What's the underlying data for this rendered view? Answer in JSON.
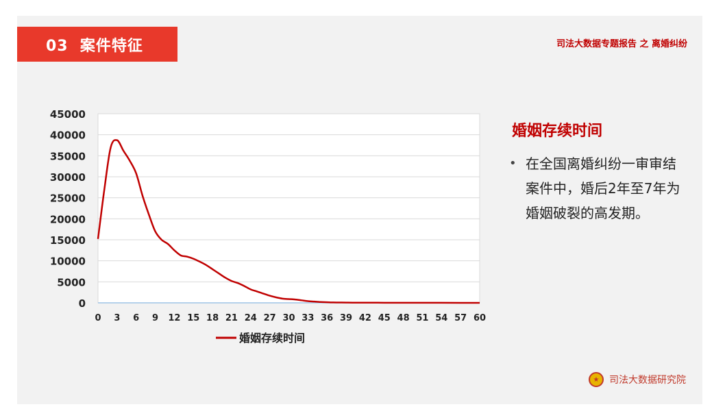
{
  "header": {
    "section_tab": "03  案件特征",
    "report_title": "司法大数据专题报告 之 离婚纠纷"
  },
  "sidebar": {
    "title": "婚姻存续时间",
    "bullet_text": "在全国离婚纠纷一审审结案件中，婚后2年至7年为婚姻破裂的高发期。"
  },
  "footer": {
    "brand_label": "司法大数据研究院",
    "emblem_icon": "court-emblem-icon"
  },
  "colors": {
    "accent_red": "#e8392b",
    "title_red": "#c00000",
    "line_color": "#c00000"
  },
  "chart_data": {
    "type": "line",
    "title": "",
    "xlabel": "",
    "ylabel": "",
    "xlim": [
      0,
      60
    ],
    "ylim": [
      0,
      45000
    ],
    "x_ticks": [
      0,
      3,
      6,
      9,
      12,
      15,
      18,
      21,
      24,
      27,
      30,
      33,
      36,
      39,
      42,
      45,
      48,
      51,
      54,
      57,
      60
    ],
    "y_ticks": [
      0,
      5000,
      10000,
      15000,
      20000,
      25000,
      30000,
      35000,
      40000,
      45000
    ],
    "grid": true,
    "legend_position": "bottom",
    "series": [
      {
        "name": "婚姻存续时间",
        "color": "#c00000",
        "x": [
          0,
          1,
          2,
          3,
          4,
          5,
          6,
          7,
          8,
          9,
          10,
          11,
          12,
          13,
          14,
          15,
          16,
          17,
          18,
          19,
          20,
          21,
          22,
          23,
          24,
          25,
          26,
          27,
          28,
          29,
          30,
          31,
          32,
          33,
          34,
          35,
          36,
          37,
          38,
          39,
          40,
          42,
          45,
          48,
          51,
          54,
          57,
          60
        ],
        "y": [
          15200,
          27000,
          37000,
          38700,
          36200,
          33800,
          30800,
          25500,
          21000,
          17000,
          15000,
          14000,
          12500,
          11300,
          11000,
          10500,
          9800,
          9000,
          8000,
          7000,
          6000,
          5200,
          4700,
          4000,
          3200,
          2700,
          2200,
          1700,
          1300,
          1000,
          900,
          800,
          600,
          400,
          300,
          200,
          150,
          100,
          80,
          60,
          50,
          40,
          30,
          25,
          20,
          15,
          10,
          5
        ]
      }
    ]
  }
}
